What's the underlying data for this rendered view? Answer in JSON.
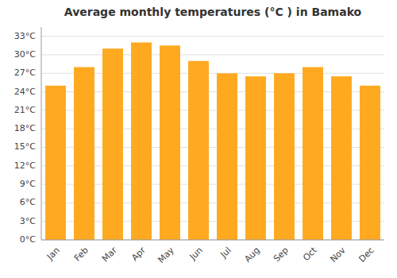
{
  "chart_data": {
    "type": "bar",
    "title": "Average monthly temperatures (°C ) in Bamako",
    "categories": [
      "Jan",
      "Feb",
      "Mar",
      "Apr",
      "May",
      "Jun",
      "Jul",
      "Aug",
      "Sep",
      "Oct",
      "Nov",
      "Dec"
    ],
    "values": [
      25,
      28,
      31,
      32,
      31.5,
      29,
      27,
      26.5,
      27,
      28,
      26.5,
      25
    ],
    "color": "#FFA920",
    "ylim": [
      0,
      34.5
    ],
    "yticks": [
      {
        "value": 0,
        "label": "0°C"
      },
      {
        "value": 3,
        "label": "3°C"
      },
      {
        "value": 6,
        "label": "6°C"
      },
      {
        "value": 9,
        "label": "9°C"
      },
      {
        "value": 12,
        "label": "12°C"
      },
      {
        "value": 15,
        "label": "15°C"
      },
      {
        "value": 18,
        "label": "18°C"
      },
      {
        "value": 21,
        "label": "21°C"
      },
      {
        "value": 24,
        "label": "24°C"
      },
      {
        "value": 27,
        "label": "27°C"
      },
      {
        "value": 30,
        "label": "30°C"
      },
      {
        "value": 33,
        "label": "33°C"
      }
    ],
    "grid": true
  }
}
